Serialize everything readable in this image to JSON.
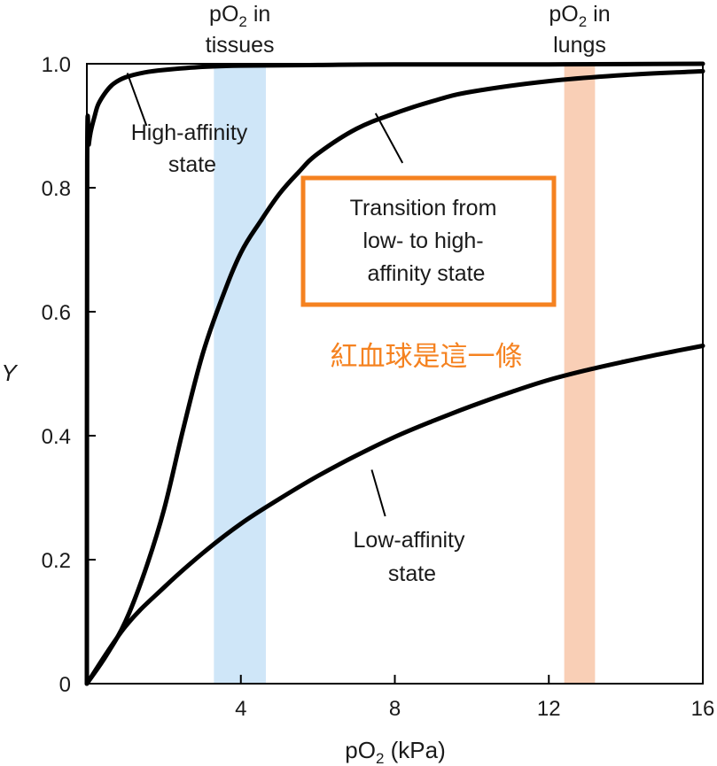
{
  "chart_data": {
    "type": "line",
    "xlabel_main": "pO",
    "xlabel_sub": "2",
    "xlabel_unit": " (kPa)",
    "ylabel": "Y",
    "xlim": [
      0,
      16
    ],
    "ylim": [
      0,
      1
    ],
    "x_ticks": [
      {
        "value": 4,
        "label": "4"
      },
      {
        "value": 8,
        "label": "8"
      },
      {
        "value": 12,
        "label": "12"
      },
      {
        "value": 16,
        "label": "16"
      }
    ],
    "y_ticks": [
      {
        "value": 0,
        "label": "0"
      },
      {
        "value": 0.2,
        "label": "0.2"
      },
      {
        "value": 0.4,
        "label": "0.4"
      },
      {
        "value": 0.6,
        "label": "0.6"
      },
      {
        "value": 0.8,
        "label": "0.8"
      },
      {
        "value": 1.0,
        "label": "1.0"
      }
    ],
    "series": [
      {
        "key": "high",
        "color": "#000000",
        "x": [
          0,
          0.01,
          0.05,
          0.1,
          0.2,
          0.3,
          0.5,
          0.7,
          1.0,
          1.5,
          2.0,
          3.0,
          4.0,
          6.0,
          8.0,
          12.0,
          16.0
        ],
        "y": [
          0,
          0.84,
          0.87,
          0.89,
          0.915,
          0.935,
          0.955,
          0.968,
          0.978,
          0.986,
          0.99,
          0.995,
          0.997,
          0.998,
          0.999,
          0.999,
          1.0
        ]
      },
      {
        "key": "transition",
        "color": "#000000",
        "x": [
          0,
          0.5,
          1.0,
          1.5,
          2.0,
          2.5,
          3.0,
          3.5,
          4.0,
          4.5,
          5.0,
          5.5,
          6.0,
          7.0,
          8.0,
          9.0,
          10.0,
          12.0,
          14.0,
          16.0
        ],
        "y": [
          0,
          0.045,
          0.1,
          0.18,
          0.28,
          0.41,
          0.53,
          0.62,
          0.695,
          0.745,
          0.79,
          0.825,
          0.855,
          0.895,
          0.92,
          0.94,
          0.955,
          0.972,
          0.982,
          0.988
        ]
      },
      {
        "key": "low",
        "color": "#000000",
        "x": [
          0,
          1,
          2,
          3,
          4,
          5,
          6,
          7,
          8,
          9,
          10,
          11,
          12,
          13,
          14,
          15,
          16
        ],
        "y": [
          0,
          0.092,
          0.155,
          0.21,
          0.258,
          0.298,
          0.335,
          0.368,
          0.398,
          0.424,
          0.448,
          0.47,
          0.49,
          0.506,
          0.52,
          0.533,
          0.545
        ]
      }
    ],
    "bands": [
      {
        "key": "tissues",
        "x0": 3.3,
        "x1": 4.65,
        "color": "#cfe6f8",
        "label_main": "pO",
        "label_sub": "2",
        "label_tail": " in",
        "label_line2": "tissues"
      },
      {
        "key": "lungs",
        "x0": 12.4,
        "x1": 13.2,
        "color": "#f9cfb6",
        "label_main": "pO",
        "label_sub": "2",
        "label_tail": " in",
        "label_line2": "lungs"
      }
    ],
    "annotations": [
      {
        "key": "high",
        "lines": [
          "High-affinity",
          "state"
        ],
        "point": [
          1.05,
          0.985
        ],
        "anchor": [
          1.55,
          0.9
        ]
      },
      {
        "key": "transition",
        "lines": [
          "Transition from",
          "low- to high-",
          "affinity state"
        ],
        "point": [
          7.5,
          0.92
        ],
        "anchor": [
          8.2,
          0.84
        ]
      },
      {
        "key": "low",
        "lines": [
          "Low-affinity",
          "state"
        ],
        "point": [
          7.4,
          0.345
        ],
        "anchor": [
          7.75,
          0.27
        ]
      }
    ],
    "highlight_box": {
      "color": "#f58220"
    },
    "note": {
      "text": "紅血球是這一條",
      "color": "#f58220"
    }
  }
}
